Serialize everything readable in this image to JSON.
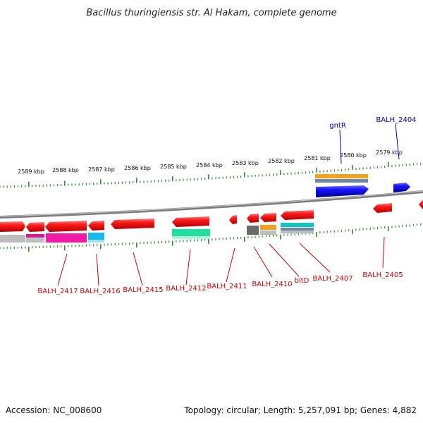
{
  "title": "Bacillus thuringiensis str. Al Hakam, complete genome",
  "footer": {
    "accession": "Accession: NC_008600",
    "summary": "Topology: circular; Length: 5,257,091 bp; Genes: 4,882"
  },
  "colors": {
    "red_gene": "#e8101c",
    "blue_gene": "#1010e0",
    "red_label": "#cc0000",
    "blue_label": "#0000aa",
    "tick": "#2e8b2e",
    "backbone": "#8a8a8a",
    "orange": "#f5a21b",
    "steel": "#6d89a8",
    "gray": "#bdbdbd",
    "dark_gray": "#6a6a6a",
    "magenta": "#f01aa6",
    "cyan": "#19b8e8",
    "teal": "#17c4c4",
    "mint": "#1fe0a0"
  },
  "scale_labels": [
    "2589 kbp",
    "2588 kbp",
    "2587 kbp",
    "2586 kbp",
    "2585 kbp",
    "2584 kbp",
    "2583 kbp",
    "2582 kbp",
    "2581 kbp",
    "2580 kbp",
    "2579 kbp"
  ],
  "top_labels": [
    {
      "text": "gntR",
      "color": "blue"
    },
    {
      "text": "BALH_2404",
      "color": "blue"
    }
  ],
  "bottom_labels": [
    {
      "text": "BALH_2417"
    },
    {
      "text": "BALH_2416"
    },
    {
      "text": "BALH_2415"
    },
    {
      "text": "BALH_2412"
    },
    {
      "text": "BALH_2411"
    },
    {
      "text": "BALH_2410"
    },
    {
      "text": "bltD"
    },
    {
      "text": "BALH_2407"
    },
    {
      "text": "BALH_2405"
    }
  ]
}
